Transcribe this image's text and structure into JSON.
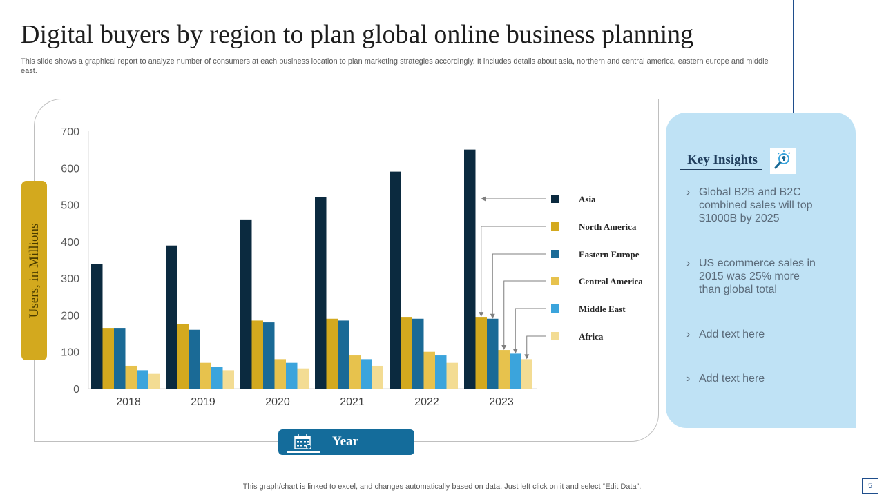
{
  "slide": {
    "title": "Digital buyers by region to plan global online business planning",
    "subtitle": "This slide shows a graphical report to analyze  number of consumers at each business location to plan marketing strategies accordingly. It includes details about asia, northern and central america, eastern europe and middle east.",
    "footer": "This graph/chart is linked to excel,  and changes automatically based on data. Just left click on it and select “Edit Data”.",
    "page_number": "5"
  },
  "insights": {
    "heading": "Key Insights",
    "icon": "lightbulb-magnifier-icon",
    "items": [
      "Global B2B and B2C combined sales will top $1000B by 2025",
      "US ecommerce sales in 2015 was 25% more than global total",
      "Add text here",
      "Add text here"
    ]
  },
  "chart_data": {
    "type": "bar",
    "title": "",
    "xlabel": "Year",
    "ylabel": "Users, in Millions",
    "ylim": [
      0,
      700
    ],
    "yticks": [
      0,
      100,
      200,
      300,
      400,
      500,
      600,
      700
    ],
    "categories": [
      "2018",
      "2019",
      "2020",
      "2021",
      "2022",
      "2023"
    ],
    "grid": false,
    "legend_position": "right",
    "series": [
      {
        "name": "Asia",
        "color": "#0b2a3f",
        "values": [
          338,
          389,
          460,
          520,
          590,
          650
        ]
      },
      {
        "name": "North America",
        "color": "#d3a91e",
        "values": [
          165,
          175,
          185,
          190,
          195,
          195
        ]
      },
      {
        "name": "Eastern Europe",
        "color": "#1a6a96",
        "values": [
          165,
          160,
          180,
          185,
          190,
          190
        ]
      },
      {
        "name": "Central America",
        "color": "#e7c24d",
        "values": [
          62,
          70,
          80,
          90,
          100,
          105
        ]
      },
      {
        "name": "Middle East",
        "color": "#3ba4dc",
        "values": [
          50,
          60,
          70,
          80,
          90,
          95
        ]
      },
      {
        "name": "Africa",
        "color": "#f3dc93",
        "values": [
          40,
          50,
          55,
          62,
          70,
          80
        ]
      }
    ]
  }
}
